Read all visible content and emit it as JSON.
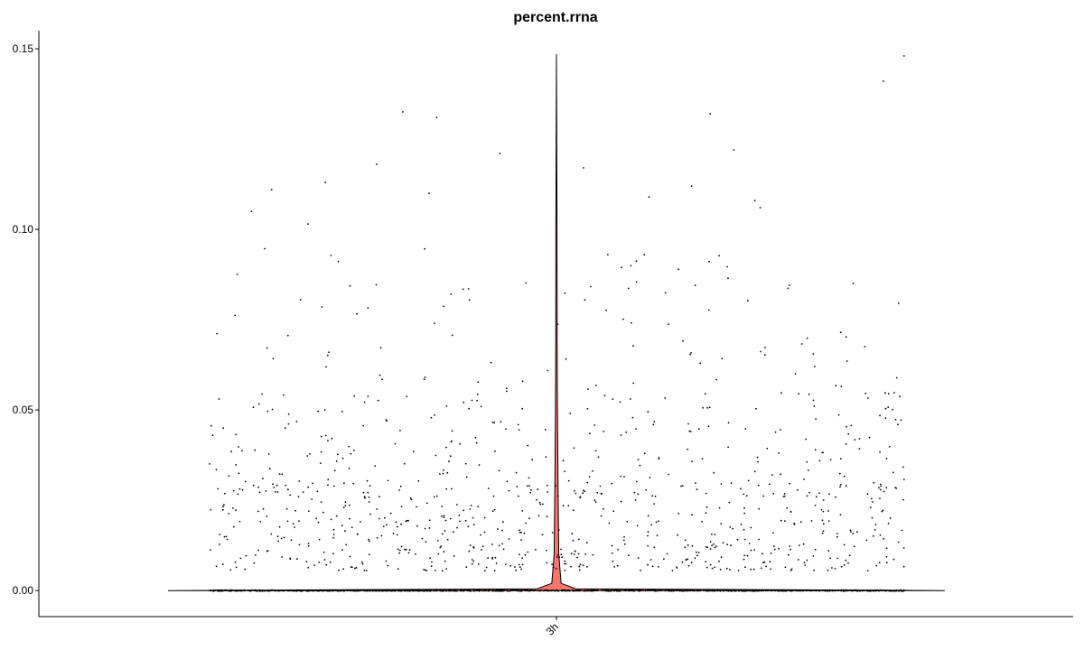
{
  "chart_data": {
    "type": "violin",
    "title": "percent.rrna",
    "categories": [
      "3h"
    ],
    "xlabel": "",
    "ylabel": "",
    "ylim": [
      -0.0072,
      0.155
    ],
    "yticks": [
      0.0,
      0.05,
      0.1,
      0.15
    ],
    "ytick_labels": [
      "0.00",
      "0.05",
      "0.10",
      "0.15"
    ],
    "grid": false,
    "legend": "none",
    "violin": {
      "category": "3h",
      "fill": "#F8766D",
      "outline": "#000000",
      "density": [
        {
          "y": 0.0,
          "w": 1.0
        },
        {
          "y": 0.0005,
          "w": 0.05
        },
        {
          "y": 0.002,
          "w": 0.012
        },
        {
          "y": 0.01,
          "w": 0.006
        },
        {
          "y": 0.03,
          "w": 0.004
        },
        {
          "y": 0.06,
          "w": 0.002
        },
        {
          "y": 0.1,
          "w": 0.0015
        },
        {
          "y": 0.1485,
          "w": 0.0
        }
      ]
    },
    "jitter": {
      "zero_count": 1200,
      "nonzero_count": 900,
      "min": 0.0055,
      "max": 0.1485,
      "outliers": [
        0.148,
        0.141,
        0.132,
        0.1325,
        0.131,
        0.122,
        0.121,
        0.118,
        0.117,
        0.113,
        0.112,
        0.111,
        0.11,
        0.109,
        0.108,
        0.106,
        0.105,
        0.1015
      ]
    }
  }
}
